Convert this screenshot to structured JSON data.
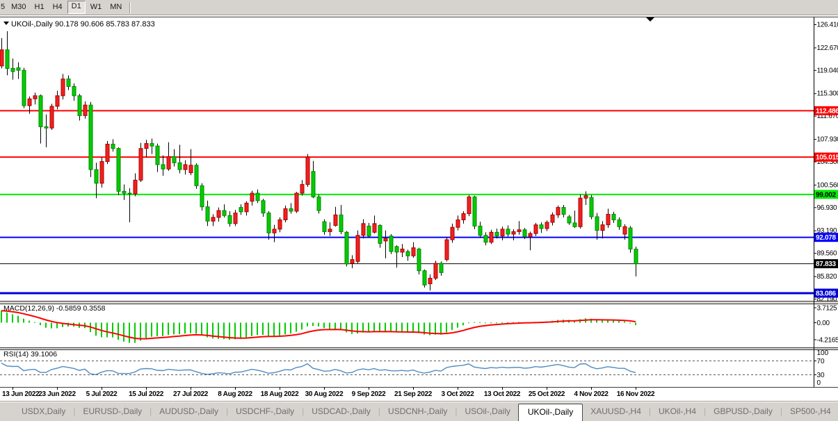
{
  "toolbar": {
    "buttons": [
      "5",
      "M30",
      "H1",
      "H4",
      "D1",
      "W1",
      "MN"
    ],
    "active": "D1"
  },
  "chart": {
    "title_text": "UKOil-,Daily   90.178 90.606 85.783 87.833",
    "symbol": "UKOil-,Daily",
    "ohlc": {
      "open": 90.178,
      "high": 90.606,
      "low": 85.783,
      "close": 87.833
    },
    "y_axis": {
      "ticks": [
        126.41,
        122.67,
        119.04,
        115.3,
        111.67,
        107.93,
        104.3,
        100.56,
        96.93,
        93.19,
        89.56,
        85.82,
        82.19
      ]
    },
    "h_lines": [
      {
        "price": 112.486,
        "label": "112.486",
        "color": "#ff0000",
        "thickness": 2,
        "text_color": "#ffffff"
      },
      {
        "price": 105.015,
        "label": "105.015",
        "color": "#ff0000",
        "thickness": 2,
        "text_color": "#ffffff"
      },
      {
        "price": 99.002,
        "label": "99.002",
        "color": "#00ee00",
        "thickness": 2,
        "text_color": "#000000"
      },
      {
        "price": 92.078,
        "label": "92.078",
        "color": "#0000ff",
        "thickness": 2,
        "text_color": "#ffffff"
      },
      {
        "price": 87.833,
        "label": "87.833",
        "color": "#000000",
        "thickness": 1,
        "text_color": "#ffffff"
      },
      {
        "price": 83.086,
        "label": "83.086",
        "color": "#0000d8",
        "thickness": 3,
        "text_color": "#ffffff"
      }
    ],
    "x_axis": {
      "tick_labels": [
        "13 Jun 2022",
        "23 Jun 2022",
        "5 Jul 2022",
        "15 Jul 2022",
        "27 Jul 2022",
        "8 Aug 2022",
        "18 Aug 2022",
        "30 Aug 2022",
        "9 Sep 2022",
        "21 Sep 2022",
        "3 Oct 2022",
        "13 Oct 2022",
        "25 Oct 2022",
        "4 Nov 2022",
        "16 Nov 2022"
      ],
      "first_tick_bar": 2,
      "bar_step": 8
    },
    "colors": {
      "up": "#f22020",
      "down": "#00cc00",
      "wick": "#000000"
    }
  },
  "chart_data": {
    "type": "candlestick",
    "symbol": "UKOil-,Daily",
    "bars_ohlc": [
      [
        119.7,
        124.2,
        119.3,
        122.3
      ],
      [
        122.3,
        125.3,
        118.2,
        119.3
      ],
      [
        119.3,
        120.9,
        117.5,
        118.8
      ],
      [
        119.4,
        120.3,
        117.6,
        119.0
      ],
      [
        119.0,
        119.4,
        112.9,
        113.3
      ],
      [
        113.3,
        114.8,
        112.0,
        114.4
      ],
      [
        114.4,
        115.4,
        113.5,
        114.9
      ],
      [
        114.9,
        115.1,
        107.2,
        109.9
      ],
      [
        109.9,
        111.9,
        106.6,
        109.7
      ],
      [
        109.7,
        113.6,
        109.4,
        113.2
      ],
      [
        113.2,
        115.7,
        112.7,
        114.9
      ],
      [
        114.9,
        118.4,
        114.3,
        117.6
      ],
      [
        117.6,
        118.2,
        115.8,
        116.4
      ],
      [
        116.4,
        116.9,
        114.1,
        114.9
      ],
      [
        114.9,
        115.2,
        110.9,
        111.7
      ],
      [
        111.7,
        114.0,
        111.2,
        113.4
      ],
      [
        113.4,
        113.9,
        101.8,
        103.0
      ],
      [
        103.0,
        104.1,
        98.4,
        100.8
      ],
      [
        100.8,
        105.0,
        100.1,
        104.3
      ],
      [
        104.3,
        107.6,
        103.9,
        107.1
      ],
      [
        107.1,
        107.9,
        105.9,
        106.4
      ],
      [
        106.4,
        106.6,
        98.9,
        99.5
      ],
      [
        99.5,
        100.6,
        98.1,
        99.2
      ],
      [
        99.2,
        100.0,
        94.5,
        99.1
      ],
      [
        99.1,
        102.4,
        98.7,
        101.3
      ],
      [
        101.3,
        107.3,
        101.0,
        106.4
      ],
      [
        106.4,
        107.8,
        105.0,
        107.2
      ],
      [
        107.2,
        108.0,
        105.5,
        106.8
      ],
      [
        106.8,
        107.2,
        102.6,
        103.8
      ],
      [
        103.8,
        105.3,
        102.0,
        103.1
      ],
      [
        103.1,
        107.4,
        102.8,
        105.1
      ],
      [
        105.1,
        106.3,
        103.5,
        104.1
      ],
      [
        104.1,
        107.0,
        102.4,
        103.0
      ],
      [
        103.0,
        104.5,
        102.2,
        103.8
      ],
      [
        102.5,
        106.3,
        102.1,
        103.7
      ],
      [
        103.7,
        104.0,
        99.9,
        100.4
      ],
      [
        100.4,
        100.8,
        96.4,
        97.0
      ],
      [
        97.0,
        98.0,
        93.9,
        94.7
      ],
      [
        94.7,
        95.8,
        93.9,
        95.3
      ],
      [
        95.3,
        96.9,
        94.6,
        96.4
      ],
      [
        96.4,
        97.4,
        95.3,
        95.6
      ],
      [
        95.6,
        96.3,
        93.8,
        94.3
      ],
      [
        94.3,
        96.5,
        93.9,
        96.0
      ],
      [
        96.9,
        97.4,
        95.7,
        96.2
      ],
      [
        96.2,
        97.9,
        95.6,
        97.6
      ],
      [
        97.9,
        99.6,
        97.2,
        99.2
      ],
      [
        99.2,
        99.8,
        97.6,
        98.0
      ],
      [
        98.0,
        98.3,
        95.4,
        96.0
      ],
      [
        96.0,
        96.3,
        91.7,
        92.8
      ],
      [
        92.8,
        94.1,
        91.3,
        93.4
      ],
      [
        93.4,
        95.3,
        92.9,
        94.9
      ],
      [
        94.9,
        97.2,
        94.5,
        96.7
      ],
      [
        96.7,
        97.6,
        95.9,
        96.3
      ],
      [
        96.3,
        99.4,
        96.0,
        99.2
      ],
      [
        99.2,
        101.3,
        98.8,
        100.6
      ],
      [
        100.6,
        105.5,
        100.2,
        105.0
      ],
      [
        102.7,
        104.4,
        98.4,
        98.6
      ],
      [
        98.6,
        99.0,
        95.9,
        96.4
      ],
      [
        94.6,
        95.0,
        92.5,
        93.0
      ],
      [
        93.0,
        94.5,
        92.3,
        93.4
      ],
      [
        94.0,
        97.0,
        93.8,
        95.7
      ],
      [
        95.7,
        97.3,
        92.6,
        93.0
      ],
      [
        92.9,
        93.1,
        87.4,
        87.8
      ],
      [
        87.9,
        89.2,
        87.1,
        88.5
      ],
      [
        88.2,
        93.2,
        87.9,
        92.4
      ],
      [
        92.4,
        95.0,
        91.9,
        94.3
      ],
      [
        93.9,
        94.4,
        92.0,
        92.3
      ],
      [
        92.9,
        95.6,
        92.7,
        94.3
      ],
      [
        94.0,
        94.2,
        90.4,
        91.1
      ],
      [
        91.5,
        93.2,
        88.7,
        91.9
      ],
      [
        92.3,
        92.6,
        89.4,
        89.8
      ],
      [
        90.6,
        90.8,
        87.2,
        89.7
      ],
      [
        89.7,
        91.0,
        88.9,
        90.2
      ],
      [
        89.8,
        90.1,
        88.3,
        89.1
      ],
      [
        89.1,
        91.3,
        88.8,
        90.4
      ],
      [
        90.2,
        90.4,
        86.1,
        86.7
      ],
      [
        86.7,
        86.9,
        84.0,
        84.4
      ],
      [
        84.6,
        86.1,
        83.5,
        85.5
      ],
      [
        85.5,
        88.3,
        85.2,
        87.9
      ],
      [
        87.9,
        88.2,
        85.9,
        86.4
      ],
      [
        88.5,
        92.1,
        88.2,
        91.7
      ],
      [
        91.7,
        94.3,
        91.2,
        93.7
      ],
      [
        93.7,
        95.6,
        93.2,
        94.9
      ],
      [
        94.9,
        96.3,
        94.3,
        95.9
      ],
      [
        95.9,
        98.9,
        95.5,
        98.6
      ],
      [
        98.6,
        98.8,
        93.4,
        93.9
      ],
      [
        93.9,
        94.6,
        92.0,
        92.4
      ],
      [
        92.4,
        92.9,
        90.8,
        91.3
      ],
      [
        91.3,
        93.3,
        91.0,
        92.9
      ],
      [
        92.9,
        93.5,
        91.9,
        92.3
      ],
      [
        92.3,
        93.8,
        91.6,
        93.4
      ],
      [
        93.4,
        94.0,
        92.2,
        92.6
      ],
      [
        92.6,
        93.4,
        91.6,
        93.0
      ],
      [
        93.0,
        94.7,
        92.5,
        93.3
      ],
      [
        93.3,
        93.6,
        91.8,
        92.2
      ],
      [
        92.2,
        93.0,
        90.0,
        92.7
      ],
      [
        92.7,
        94.4,
        92.3,
        94.1
      ],
      [
        94.1,
        94.5,
        92.8,
        93.5
      ],
      [
        93.5,
        94.8,
        93.1,
        94.5
      ],
      [
        94.5,
        96.1,
        94.0,
        95.7
      ],
      [
        95.7,
        97.2,
        95.2,
        96.9
      ],
      [
        96.9,
        97.3,
        95.3,
        95.8
      ],
      [
        95.4,
        95.7,
        94.1,
        94.4
      ],
      [
        94.4,
        96.4,
        93.6,
        93.8
      ],
      [
        93.8,
        99.0,
        93.5,
        98.4
      ],
      [
        98.4,
        99.5,
        97.3,
        98.8
      ],
      [
        98.5,
        98.9,
        95.0,
        95.4
      ],
      [
        95.4,
        96.0,
        91.7,
        93.2
      ],
      [
        93.2,
        94.7,
        91.9,
        94.1
      ],
      [
        94.1,
        96.7,
        93.6,
        95.8
      ],
      [
        95.8,
        96.2,
        94.4,
        94.9
      ],
      [
        94.9,
        95.3,
        93.3,
        93.8
      ],
      [
        92.6,
        94.2,
        91.7,
        93.8
      ],
      [
        93.6,
        93.9,
        89.6,
        90.2
      ],
      [
        90.178,
        90.606,
        85.783,
        87.833
      ]
    ]
  },
  "indicators": {
    "macd": {
      "label": "MACD(12,26,9)",
      "value_text": "-0.5859 0.3558",
      "ticks": [
        "3.7125",
        "0.00",
        "-4.2165"
      ],
      "hist_color": "#00cc00",
      "signal_color": "#ff0000",
      "seeds": {
        "ema12": 123.0,
        "ema26": 119.4,
        "signal": 3.2
      }
    },
    "rsi": {
      "label": "RSI(14)",
      "value_text": "39.1006",
      "ticks": [
        "100",
        "70",
        "30",
        "0"
      ],
      "levels": [
        70,
        30
      ],
      "line_color": "#4f8bc0",
      "seeds": {
        "avg_gain": 1.05,
        "avg_loss": 0.6
      }
    }
  },
  "tabs": {
    "items": [
      "USDX,Daily",
      "EURUSD-,Daily",
      "AUDUSD-,Daily",
      "USDCHF-,Daily",
      "USDCAD-,Daily",
      "USDCNH-,Daily",
      "USOil-,Daily",
      "UKOil-,Daily",
      "XAUUSD-,H4",
      "UKOil-,H4",
      "GBPUSD-,Daily",
      "SP500-,H4"
    ],
    "active": "UKOil-,Daily",
    "scroll_left": "◂",
    "scroll_right": "▸"
  }
}
